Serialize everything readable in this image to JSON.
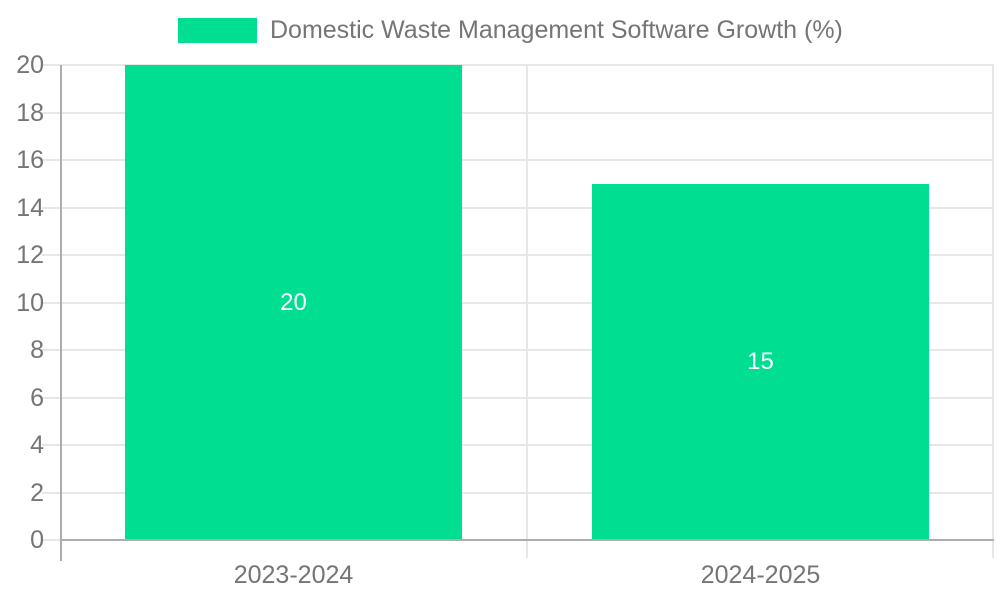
{
  "chart_data": {
    "type": "bar",
    "title": "",
    "legend_label": "Domestic Waste Management Software Growth (%)",
    "legend_position": "top-center",
    "categories": [
      "2023-2024",
      "2024-2025"
    ],
    "values": [
      20,
      15
    ],
    "bar_labels": [
      "20",
      "15"
    ],
    "xlabel": "",
    "ylabel": "",
    "ylim": [
      0,
      20
    ],
    "yticks": [
      0,
      2,
      4,
      6,
      8,
      10,
      12,
      14,
      16,
      18,
      20
    ],
    "grid": true,
    "colors": {
      "bar": "#00DE92",
      "bar_label": "#FFFFFF",
      "axis_text": "#757575",
      "gridline": "#E7E7E7",
      "axis_line": "#ADADAD",
      "background": "#FFFFFF"
    }
  }
}
